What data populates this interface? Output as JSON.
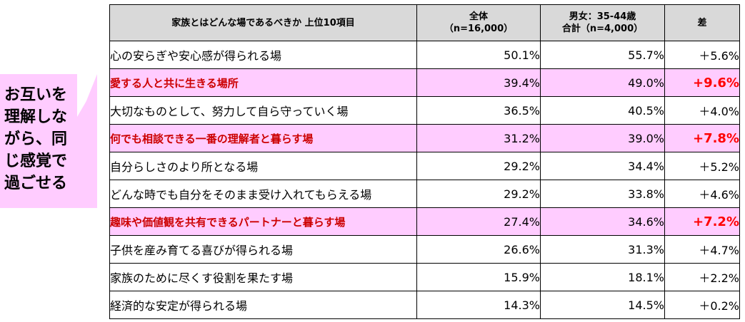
{
  "callout": {
    "text": "お互いを\n理解しな\nがら、同\nじ感覚で\n過ごせる",
    "fill": "#ffccff"
  },
  "table": {
    "headers": {
      "item": "家族とはどんな場であるべきか 上位10項目",
      "total_line1": "全体",
      "total_line2": "（n=16,000）",
      "segment_line1": "男女：35-44歳",
      "segment_line2": "合計（n=4,000）",
      "diff": "差"
    },
    "rows": [
      {
        "item": "心の安らぎや安心感が得られる場",
        "total": "50.1%",
        "segment": "55.7%",
        "diff": "＋5.6%",
        "highlight": false
      },
      {
        "item": "愛する人と共に生きる場所",
        "total": "39.4%",
        "segment": "49.0%",
        "diff": "+9.6%",
        "highlight": true
      },
      {
        "item": "大切なものとして、努力して自ら守っていく場",
        "total": "36.5%",
        "segment": "40.5%",
        "diff": "＋4.0%",
        "highlight": false
      },
      {
        "item": "何でも相談できる一番の理解者と暮らす場",
        "total": "31.2%",
        "segment": "39.0%",
        "diff": "+7.8%",
        "highlight": true
      },
      {
        "item": "自分らしさのより所となる場",
        "total": "29.2%",
        "segment": "34.4%",
        "diff": "＋5.2%",
        "highlight": false
      },
      {
        "item": "どんな時でも自分をそのまま受け入れてもらえる場",
        "total": "29.2%",
        "segment": "33.8%",
        "diff": "＋4.6%",
        "highlight": false
      },
      {
        "item": "趣味や価値観を共有できるパートナーと暮らす場",
        "total": "27.4%",
        "segment": "34.6%",
        "diff": "+7.2%",
        "highlight": true
      },
      {
        "item": "子供を産み育てる喜びが得られる場",
        "total": "26.6%",
        "segment": "31.3%",
        "diff": "＋4.7%",
        "highlight": false
      },
      {
        "item": "家族のために尽くす役割を果たす場",
        "total": "15.9%",
        "segment": "18.1%",
        "diff": "＋2.2%",
        "highlight": false
      },
      {
        "item": "経済的な安定が得られる場",
        "total": "14.3%",
        "segment": "14.5%",
        "diff": "＋0.2%",
        "highlight": false
      }
    ]
  }
}
